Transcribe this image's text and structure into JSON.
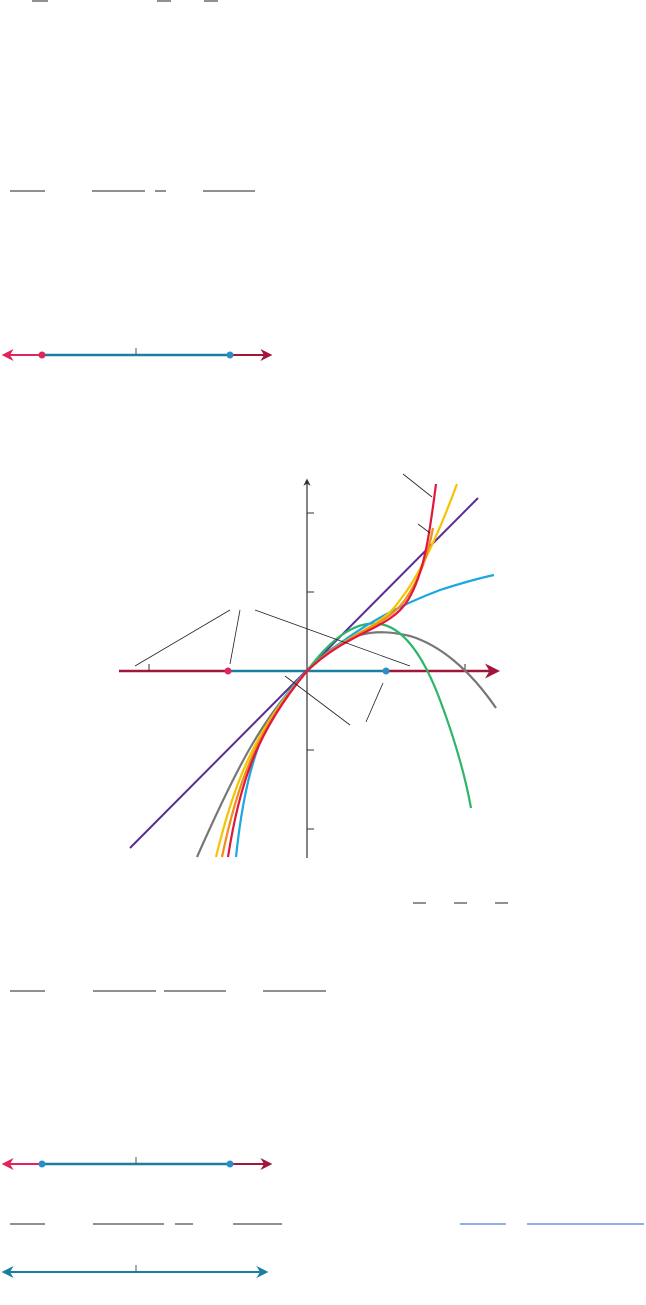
{
  "colors": {
    "pink": "#E0245E",
    "dark_red": "#A0173B",
    "teal": "#1A7F9E",
    "blue_dot": "#2A8FC8",
    "tick": "#555555",
    "purple": "#5B2D91",
    "red": "#E3163C",
    "orange": "#F28C1A",
    "yellow": "#F5C400",
    "light_blue": "#1BA8E0",
    "green": "#2DB56A",
    "gray": "#777777",
    "axis": "#333333",
    "leader": "#222222",
    "link": "#1E5FD0"
  },
  "number_lines": [
    {
      "id": "line-1",
      "left_end": "pink",
      "middle": "teal",
      "right_end": "dark_red",
      "left_dot": "pink",
      "right_dot": "blue_dot"
    },
    {
      "id": "line-2",
      "left_end": "pink",
      "middle": "teal",
      "right_end": "dark_red",
      "left_dot": "blue_dot",
      "right_dot": "blue_dot"
    },
    {
      "id": "line-3",
      "left_end": "teal",
      "middle": "teal",
      "right_end": "teal"
    }
  ],
  "graph": {
    "curves": [
      {
        "name": "purple-line",
        "color": "purple"
      },
      {
        "name": "gray-curve",
        "color": "gray"
      },
      {
        "name": "green-curve",
        "color": "green"
      },
      {
        "name": "light-blue-curve",
        "color": "light_blue"
      },
      {
        "name": "yellow-curve",
        "color": "yellow"
      },
      {
        "name": "orange-curve",
        "color": "orange"
      },
      {
        "name": "red-curve",
        "color": "red"
      }
    ]
  }
}
